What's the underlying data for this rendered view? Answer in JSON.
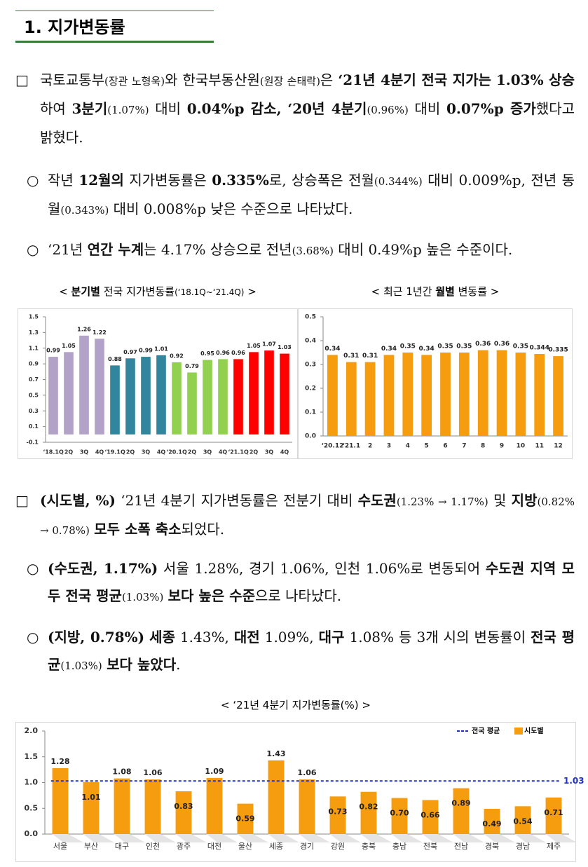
{
  "section_title": "1. 지가변동률",
  "paragraphs": [
    {
      "marker": "□",
      "runs": [
        "국토교통부",
        {
          "text": "(장관 노형욱)",
          "small": true
        },
        "와 한국부동산원",
        {
          "text": "(원장 손태락)",
          "small": true
        },
        "은 ",
        {
          "text": "‘21년 4분기 전국 지가는",
          "bold": true
        },
        " ",
        {
          "text": "1.03% 상승",
          "bold": true
        },
        "하여 ",
        {
          "text": "3분기",
          "bold": true
        },
        {
          "text": "(1.07%)",
          "small": true
        },
        " 대비 ",
        {
          "text": "0.04%p 감소,",
          "bold": true
        },
        " ",
        {
          "text": "‘20년 4분기",
          "bold": true
        },
        {
          "text": "(0.96%)",
          "small": true
        },
        " 대비 ",
        {
          "text": "0.07%p 증가",
          "bold": true
        },
        "했다고 밝혔다."
      ]
    },
    {
      "marker": "○",
      "runs": [
        "작년 ",
        {
          "text": "12월의",
          "bold": true
        },
        " 지가변동률은 ",
        {
          "text": "0.335%",
          "bold": true
        },
        "로, 상승폭은 전월",
        {
          "text": "(0.344%)",
          "small": true
        },
        " 대비 0.009%p, 전년 동월",
        {
          "text": "(0.343%)",
          "small": true
        },
        " 대비 0.008%p 낮은 수준으로 나타났다."
      ]
    },
    {
      "marker": "○",
      "runs": [
        "‘21년 ",
        {
          "text": "연간 누계",
          "bold": true
        },
        "는 4.17% 상승으로 전년",
        {
          "text": "(3.68%)",
          "small": true
        },
        " 대비 0.49%p 높은 수준이다."
      ]
    },
    {
      "marker": "□",
      "runs": [
        {
          "text": "(시도별, %)",
          "bold": true
        },
        " ‘21년 4분기 지가변동률은 전분기 대비 ",
        {
          "text": "수도권",
          "bold": true
        },
        {
          "text": "(1.23% → 1.17%)",
          "small": true
        },
        " 및 ",
        {
          "text": "지방",
          "bold": true
        },
        {
          "text": "(0.82% → 0.78%)",
          "small": true
        },
        " ",
        {
          "text": "모두 소폭 축소",
          "bold": true
        },
        "되었다."
      ]
    },
    {
      "marker": "○",
      "runs": [
        {
          "text": "(수도권, 1.17%)",
          "bold": true
        },
        " 서울 1.28%, 경기 1.06%, 인천 1.06%로 변동되어 ",
        {
          "text": "수도권 지역 모두 전국 평균",
          "bold": true
        },
        {
          "text": "(1.03%)",
          "small": true
        },
        " ",
        {
          "text": "보다 높은 수준",
          "bold": true
        },
        "으로 나타났다."
      ]
    },
    {
      "marker": "○",
      "runs": [
        {
          "text": "(지방, 0.78%)",
          "bold": true
        },
        " ",
        {
          "text": "세종",
          "bold": true
        },
        " 1.43%, ",
        {
          "text": "대전",
          "bold": true
        },
        " 1.09%, ",
        {
          "text": "대구",
          "bold": true
        },
        " 1.08% 등 3개 시의 변동률이 ",
        {
          "text": "전국 평균",
          "bold": true
        },
        {
          "text": "(1.03%)",
          "small": true
        },
        " ",
        {
          "text": "보다 높았다",
          "bold": true
        },
        "."
      ]
    }
  ],
  "captions": [
    [
      "< ",
      {
        "text": "분기별",
        "bold": true
      },
      " 전국 지가변동률",
      {
        "text": "(‘18.1Q~‘21.4Q)",
        "small": true
      },
      " >"
    ],
    [
      "< 최근 1년간 ",
      {
        "text": "월별",
        "bold": true
      },
      " 변동률 >"
    ],
    [
      "< ‘21년 4분기 지가변동률(%) >"
    ]
  ],
  "chart_data": [
    {
      "type": "bar",
      "categories": [
        "‘18.1Q",
        "2Q",
        "3Q",
        "4Q",
        "‘19.1Q",
        "2Q",
        "3Q",
        "4Q",
        "‘20.1Q",
        "2Q",
        "3Q",
        "4Q",
        "‘21.1Q",
        "2Q",
        "3Q",
        "4Q"
      ],
      "values": [
        0.99,
        1.05,
        1.26,
        1.22,
        0.88,
        0.97,
        0.99,
        1.01,
        0.92,
        0.79,
        0.95,
        0.96,
        0.96,
        1.05,
        1.07,
        1.03
      ],
      "colors": [
        "#b3a2c7",
        "#b3a2c7",
        "#b3a2c7",
        "#b3a2c7",
        "#31859c",
        "#31859c",
        "#31859c",
        "#31859c",
        "#92d050",
        "#92d050",
        "#92d050",
        "#92d050",
        "#ff0000",
        "#ff0000",
        "#ff0000",
        "#ff0000"
      ],
      "ylim": [
        -0.1,
        1.5
      ],
      "yticks": [
        -0.1,
        0.1,
        0.3,
        0.5,
        0.7,
        0.9,
        1.1,
        1.3,
        1.5
      ],
      "grid": false
    },
    {
      "type": "bar",
      "categories": [
        "‘20.12",
        "‘21.1",
        "2",
        "3",
        "4",
        "5",
        "6",
        "7",
        "8",
        "9",
        "10",
        "11",
        "12"
      ],
      "values": [
        0.34,
        0.31,
        0.31,
        0.34,
        0.35,
        0.34,
        0.35,
        0.35,
        0.36,
        0.36,
        0.35,
        0.344,
        0.335
      ],
      "color": "#f59d0e",
      "ylim": [
        0,
        0.5
      ],
      "yticks": [
        {
          "value": 0,
          "label": "0.0"
        },
        0.1,
        0.2,
        0.3,
        0.4,
        0.5
      ],
      "grid": false
    },
    {
      "type": "bar",
      "categories": [
        "서울",
        "부산",
        "대구",
        "인천",
        "광주",
        "대전",
        "울산",
        "세종",
        "경기",
        "강원",
        "충북",
        "충남",
        "전북",
        "전남",
        "경북",
        "경남",
        "제주"
      ],
      "series": [
        {
          "name": "시도별",
          "color": "#f59d0e",
          "values": [
            1.28,
            1.01,
            1.08,
            1.06,
            0.83,
            1.09,
            0.59,
            1.43,
            1.06,
            0.73,
            0.82,
            0.7,
            0.66,
            0.89,
            0.49,
            0.54,
            0.71
          ],
          "value_labels": [
            "1.28",
            "1.01",
            "1.08",
            "1.06",
            "0.83",
            "1.09",
            "0.59",
            "1.43",
            "1.06",
            "0.73",
            "0.82",
            "0.70",
            "0.66",
            "0.89",
            "0.49",
            "0.54",
            "0.71"
          ]
        }
      ],
      "reference_line": {
        "name": "전국 평균",
        "value": 1.03,
        "label": "1.03",
        "color": "#2233bb"
      },
      "ylim": [
        0,
        2
      ],
      "yticks": [
        {
          "value": 0,
          "label": "0.0"
        },
        0.5,
        {
          "value": 1,
          "label": "1.0"
        },
        1.5,
        {
          "value": 2,
          "label": "2.0"
        }
      ],
      "legend": "top-right",
      "grid": false
    }
  ]
}
